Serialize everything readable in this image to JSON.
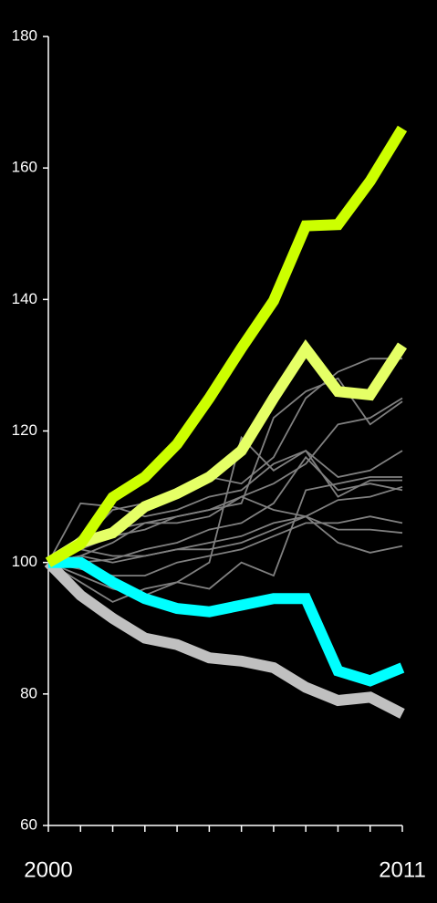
{
  "chart_data": {
    "type": "line",
    "x": [
      2000,
      2001,
      2002,
      2003,
      2004,
      2005,
      2006,
      2007,
      2008,
      2009,
      2010,
      2011
    ],
    "xlim": [
      2000,
      2011
    ],
    "xticks": [
      2000,
      2011
    ],
    "ylim": [
      60,
      180
    ],
    "yticks": [
      60,
      80,
      100,
      120,
      140,
      160,
      180
    ],
    "series": [
      {
        "color": "#808080",
        "values": [
          100,
          109,
          108.5,
          107,
          108,
          110,
          111,
          115,
          117,
          110,
          112.5,
          112.5
        ]
      },
      {
        "color": "#808080",
        "values": [
          100,
          103,
          108,
          109,
          111,
          113,
          112,
          116,
          125,
          129,
          131,
          131
        ]
      },
      {
        "color": "#808080",
        "values": [
          100,
          101,
          103,
          106,
          107,
          108,
          109,
          122,
          126,
          128,
          121,
          124.5
        ]
      },
      {
        "color": "#808080",
        "values": [
          100,
          98,
          96,
          95,
          97,
          100,
          119,
          114,
          117,
          113,
          114,
          117
        ]
      },
      {
        "color": "#808080",
        "values": [
          100,
          102,
          104,
          105,
          107,
          108,
          110,
          112,
          115,
          121,
          122,
          125
        ]
      },
      {
        "color": "#808080",
        "values": [
          100,
          99,
          98,
          98,
          100,
          101,
          102,
          104,
          106,
          106,
          107,
          106
        ]
      },
      {
        "color": "#808080",
        "values": [
          100,
          97,
          94,
          96,
          97,
          96,
          100,
          98,
          111,
          112,
          113,
          113
        ]
      },
      {
        "color": "#808080",
        "values": [
          100,
          101,
          100,
          101,
          102,
          103,
          104,
          106,
          107,
          103,
          101.5,
          102.5
        ]
      },
      {
        "color": "#808080",
        "values": [
          100,
          102,
          101,
          101,
          102,
          102,
          103,
          105,
          107,
          105,
          105,
          104.5
        ]
      },
      {
        "color": "#808080",
        "values": [
          100,
          100,
          100.5,
          102,
          103,
          105,
          106,
          109,
          116,
          111,
          112,
          111
        ]
      },
      {
        "color": "#808080",
        "values": [
          100,
          104,
          105,
          106,
          106,
          107,
          110,
          108,
          107,
          109.5,
          110,
          111.5
        ]
      },
      {
        "color": "#c0c0c0",
        "emphasis": true,
        "values": [
          100,
          95,
          91.5,
          88.5,
          87.5,
          85.5,
          85,
          84,
          81,
          79,
          79.5,
          77
        ]
      },
      {
        "color": "#00ffff",
        "emphasis": true,
        "values": [
          100,
          100,
          97,
          94.5,
          93,
          92.5,
          93.5,
          94.5,
          94.5,
          83.5,
          82,
          84
        ]
      },
      {
        "color": "#e5ff66",
        "emphasis": true,
        "values": [
          100,
          103,
          104.5,
          108.5,
          110.5,
          113,
          117,
          125,
          132.5,
          126,
          125.5,
          133
        ]
      },
      {
        "color": "#ccff00",
        "emphasis": true,
        "values": [
          100,
          102.8,
          109.9,
          113,
          118,
          125,
          132.6,
          139.8,
          151.2,
          151.4,
          158,
          166
        ]
      }
    ]
  }
}
